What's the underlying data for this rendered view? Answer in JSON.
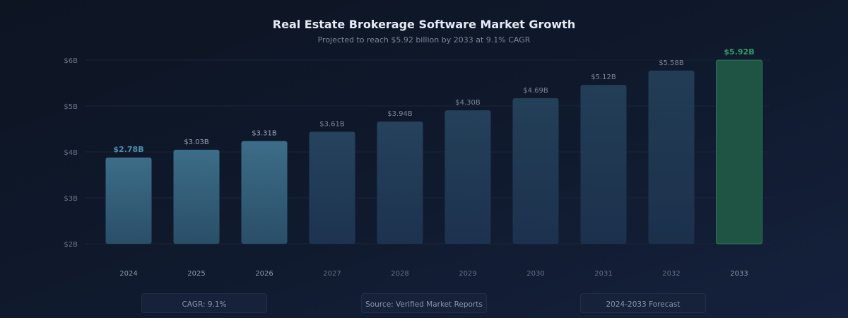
{
  "chart_data": {
    "type": "bar",
    "title": "Real Estate Brokerage Software Market Growth",
    "subtitle": "Projected to reach $5.92 billion by 2033 at 9.1% CAGR",
    "categories": [
      "2024",
      "2025",
      "2026",
      "2027",
      "2028",
      "2029",
      "2030",
      "2031",
      "2032",
      "2033"
    ],
    "values": [
      2.78,
      3.03,
      3.31,
      3.61,
      3.94,
      4.3,
      4.69,
      5.12,
      5.58,
      5.92
    ],
    "data_labels": [
      "$2.78B",
      "$3.03B",
      "$3.31B",
      "$3.61B",
      "$3.94B",
      "$4.30B",
      "$4.69B",
      "$5.12B",
      "$5.58B",
      "$5.92B"
    ],
    "y_tick_labels": [
      "$2B",
      "$3B",
      "$4B",
      "$5B",
      "$6B"
    ],
    "unit": "USD billions",
    "grid": true,
    "legend": "none",
    "colors": {
      "bar": "#3a6d8a",
      "highlight": "#1f5444",
      "highlight_label": "#2f9e64",
      "first_label": "#4a8db0"
    }
  },
  "footer": {
    "cagr": "CAGR: 9.1%",
    "source": "Source: Verified Market Reports",
    "forecast": "2024-2033 Forecast"
  }
}
